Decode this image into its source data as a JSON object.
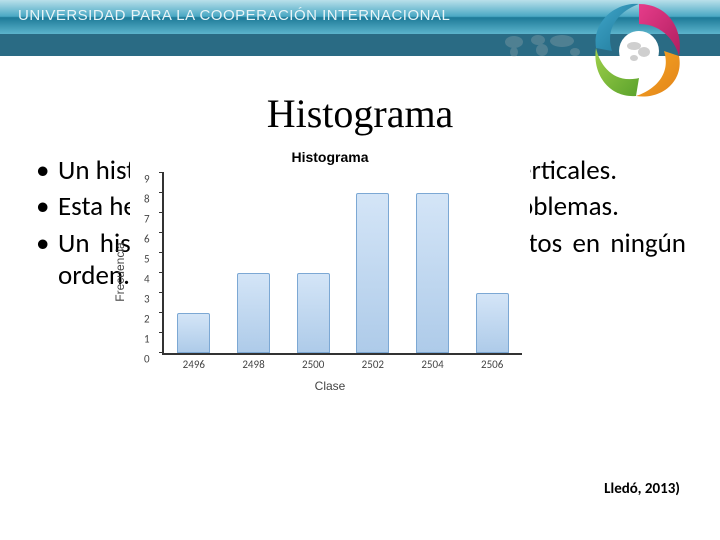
{
  "header": {
    "org_name": "UNIVERSIDAD PARA LA COOPERACIÓN INTERNACIONAL"
  },
  "slide": {
    "title": "Histograma",
    "bullets": [
      "Un histograma es un diagrama de barras verticales.",
      "Esta herramienta ayuda a identificar los problemas.",
      "Un histograma no tiene en cuenta los datos en ningún orden."
    ],
    "citation": "Lledó, 2013)"
  },
  "chart": {
    "type": "bar",
    "title": "Histograma",
    "xlabel": "Clase",
    "ylabel": "Frecuencia",
    "categories": [
      "2496",
      "2498",
      "2500",
      "2502",
      "2504",
      "2506"
    ],
    "values": [
      2,
      4,
      4,
      8,
      8,
      3
    ],
    "ylim_max": 9,
    "ytick_step": 1,
    "bar_fill_top": "#d4e5f7",
    "bar_fill_bottom": "#aecbe9",
    "bar_border": "#7ca8d4",
    "axis_color": "#333333",
    "background_color": "#ffffff",
    "bar_width_ratio": 0.55,
    "title_fontsize": 14,
    "label_fontsize": 12,
    "tick_fontsize": 11
  }
}
